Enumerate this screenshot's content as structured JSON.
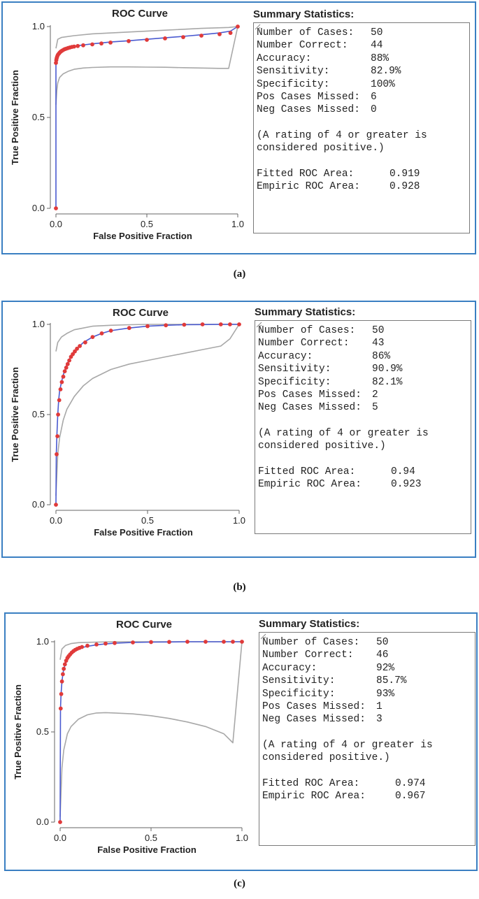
{
  "panels": [
    {
      "caption": "(a)",
      "chart_data": {
        "type": "line",
        "title": "ROC Curve",
        "xlabel": "False Positive Fraction",
        "ylabel": "True Positive Fraction",
        "xlim": [
          0,
          1
        ],
        "ylim": [
          0,
          1
        ],
        "xticks": [
          "0.0",
          "0.5",
          "1.0"
        ],
        "yticks": [
          "0.0",
          "0.5",
          "1.0"
        ],
        "grid": false,
        "series": [
          {
            "role": "fitted",
            "color": "#4a5ad0",
            "x": [
              0,
              0,
              0.002,
              0.004,
              0.007,
              0.01,
              0.014,
              0.019,
              0.025,
              0.032,
              0.04,
              0.05,
              0.062,
              0.075,
              0.09,
              0.12,
              0.16,
              0.2,
              0.25,
              0.3,
              0.4,
              0.5,
              0.6,
              0.7,
              0.8,
              0.9,
              0.96,
              1.0
            ],
            "y": [
              0,
              0.8,
              0.82,
              0.83,
              0.84,
              0.848,
              0.855,
              0.86,
              0.865,
              0.87,
              0.875,
              0.879,
              0.883,
              0.887,
              0.89,
              0.895,
              0.9,
              0.905,
              0.91,
              0.915,
              0.922,
              0.93,
              0.938,
              0.946,
              0.955,
              0.965,
              0.975,
              1.0
            ]
          },
          {
            "role": "upper-bound",
            "color": "#a8a8a8",
            "x": [
              0,
              0.01,
              0.03,
              0.1,
              0.2,
              0.4,
              0.6,
              0.8,
              0.95,
              1.0
            ],
            "y": [
              0.88,
              0.93,
              0.94,
              0.95,
              0.96,
              0.97,
              0.98,
              0.99,
              0.995,
              1.0
            ]
          },
          {
            "role": "lower-bound",
            "color": "#a8a8a8",
            "x": [
              0,
              0.005,
              0.01,
              0.02,
              0.04,
              0.07,
              0.1,
              0.15,
              0.2,
              0.3,
              0.4,
              0.5,
              0.6,
              0.7,
              0.8,
              0.9,
              0.95,
              1.0
            ],
            "y": [
              0.57,
              0.65,
              0.69,
              0.72,
              0.74,
              0.755,
              0.765,
              0.772,
              0.775,
              0.778,
              0.778,
              0.777,
              0.776,
              0.774,
              0.772,
              0.77,
              0.77,
              1.0
            ]
          }
        ],
        "points": {
          "color": "#e03a3a",
          "x": [
            0,
            0,
            0.002,
            0.004,
            0.006,
            0.009,
            0.012,
            0.016,
            0.02,
            0.025,
            0.03,
            0.036,
            0.043,
            0.05,
            0.058,
            0.067,
            0.077,
            0.088,
            0.1,
            0.12,
            0.15,
            0.2,
            0.25,
            0.3,
            0.4,
            0.5,
            0.6,
            0.7,
            0.8,
            0.9,
            0.96,
            1.0
          ],
          "y": [
            0,
            0.8,
            0.815,
            0.825,
            0.833,
            0.84,
            0.846,
            0.851,
            0.856,
            0.861,
            0.865,
            0.869,
            0.873,
            0.876,
            0.879,
            0.882,
            0.885,
            0.888,
            0.89,
            0.893,
            0.897,
            0.902,
            0.907,
            0.912,
            0.92,
            0.927,
            0.935,
            0.942,
            0.95,
            0.958,
            0.965,
            1.0
          ]
        }
      },
      "stats": {
        "title": "Summary Statistics:",
        "rows": [
          {
            "key": "Number of Cases:",
            "value": "50"
          },
          {
            "key": "Number Correct:",
            "value": "44"
          },
          {
            "key": "Accuracy:",
            "value": "88%"
          },
          {
            "key": "Sensitivity:",
            "value": "82.9%"
          },
          {
            "key": "Specificity:",
            "value": "100%"
          },
          {
            "key": "Pos Cases Missed:",
            "value": "6"
          },
          {
            "key": "Neg Cases Missed:",
            "value": "0"
          }
        ],
        "note": "(A rating of 4 or greater is considered positive.)",
        "area_rows": [
          {
            "key": "Fitted ROC Area:",
            "value": "0.919"
          },
          {
            "key": "Empiric ROC Area:",
            "value": "0.928"
          }
        ]
      }
    },
    {
      "caption": "(b)",
      "chart_data": {
        "type": "line",
        "title": "ROC Curve",
        "xlabel": "False Positive Fraction",
        "ylabel": "True Positive Fraction",
        "xlim": [
          0,
          1
        ],
        "ylim": [
          0,
          1
        ],
        "xticks": [
          "0.0",
          "0.5",
          "1.0"
        ],
        "yticks": [
          "0.0",
          "0.5",
          "1.0"
        ],
        "grid": false,
        "series": [
          {
            "role": "fitted",
            "color": "#4a5ad0",
            "x": [
              0,
              0.002,
              0.005,
              0.01,
              0.015,
              0.02,
              0.03,
              0.04,
              0.05,
              0.06,
              0.07,
              0.08,
              0.1,
              0.12,
              0.15,
              0.2,
              0.25,
              0.3,
              0.4,
              0.5,
              0.6,
              0.7,
              0.8,
              0.9,
              1.0
            ],
            "y": [
              0,
              0.28,
              0.38,
              0.5,
              0.58,
              0.63,
              0.68,
              0.72,
              0.75,
              0.78,
              0.8,
              0.82,
              0.85,
              0.87,
              0.9,
              0.93,
              0.95,
              0.965,
              0.98,
              0.99,
              0.995,
              0.998,
              0.999,
              1.0,
              1.0
            ]
          },
          {
            "role": "upper-bound",
            "color": "#a8a8a8",
            "x": [
              0,
              0.01,
              0.03,
              0.06,
              0.1,
              0.15,
              0.2,
              0.3,
              0.4,
              0.5,
              0.7,
              1.0
            ],
            "y": [
              0.85,
              0.9,
              0.93,
              0.95,
              0.97,
              0.98,
              0.99,
              0.995,
              0.998,
              1.0,
              1.0,
              1.0
            ]
          },
          {
            "role": "lower-bound",
            "color": "#a8a8a8",
            "x": [
              0,
              0.01,
              0.02,
              0.04,
              0.06,
              0.1,
              0.15,
              0.2,
              0.3,
              0.4,
              0.5,
              0.6,
              0.7,
              0.8,
              0.9,
              0.95,
              1.0
            ],
            "y": [
              0.05,
              0.28,
              0.37,
              0.47,
              0.53,
              0.6,
              0.66,
              0.7,
              0.75,
              0.78,
              0.8,
              0.82,
              0.84,
              0.86,
              0.88,
              0.92,
              1.0
            ]
          }
        ],
        "points": {
          "color": "#e03a3a",
          "x": [
            0,
            0.004,
            0.008,
            0.012,
            0.018,
            0.025,
            0.032,
            0.04,
            0.048,
            0.056,
            0.064,
            0.073,
            0.082,
            0.092,
            0.103,
            0.115,
            0.13,
            0.16,
            0.2,
            0.25,
            0.3,
            0.4,
            0.5,
            0.6,
            0.7,
            0.8,
            0.9,
            0.95,
            1.0
          ],
          "y": [
            0,
            0.28,
            0.38,
            0.5,
            0.58,
            0.64,
            0.68,
            0.71,
            0.74,
            0.76,
            0.78,
            0.8,
            0.82,
            0.835,
            0.85,
            0.865,
            0.88,
            0.9,
            0.93,
            0.95,
            0.965,
            0.98,
            0.99,
            0.995,
            0.998,
            1.0,
            1.0,
            1.0,
            1.0
          ]
        }
      },
      "stats": {
        "title": "Summary Statistics:",
        "rows": [
          {
            "key": "Number of Cases:",
            "value": "50"
          },
          {
            "key": "Number Correct:",
            "value": "43"
          },
          {
            "key": "Accuracy:",
            "value": "86%"
          },
          {
            "key": "Sensitivity:",
            "value": "90.9%"
          },
          {
            "key": "Specificity:",
            "value": "82.1%"
          },
          {
            "key": "Pos Cases Missed:",
            "value": "2"
          },
          {
            "key": "Neg Cases Missed:",
            "value": "5"
          }
        ],
        "note": "(A rating of 4 or greater is considered positive.)",
        "area_rows": [
          {
            "key": "Fitted ROC Area:",
            "value": "0.94"
          },
          {
            "key": "Empiric ROC Area:",
            "value": "0.923"
          }
        ]
      }
    },
    {
      "caption": "(c)",
      "chart_data": {
        "type": "line",
        "title": "ROC Curve",
        "xlabel": "False Positive Fraction",
        "ylabel": "True Positive Fraction",
        "xlim": [
          0,
          1
        ],
        "ylim": [
          0,
          1
        ],
        "xticks": [
          "0.0",
          "0.5",
          "1.0"
        ],
        "yticks": [
          "0.0",
          "0.5",
          "1.0"
        ],
        "grid": false,
        "series": [
          {
            "role": "fitted",
            "color": "#4a5ad0",
            "x": [
              0,
              0.002,
              0.005,
              0.01,
              0.015,
              0.02,
              0.03,
              0.04,
              0.05,
              0.06,
              0.08,
              0.1,
              0.12,
              0.15,
              0.2,
              0.25,
              0.3,
              0.4,
              0.5,
              0.6,
              0.7,
              0.8,
              0.9,
              1.0
            ],
            "y": [
              0,
              0.63,
              0.71,
              0.78,
              0.82,
              0.85,
              0.88,
              0.9,
              0.92,
              0.935,
              0.95,
              0.96,
              0.968,
              0.975,
              0.983,
              0.988,
              0.992,
              0.996,
              0.998,
              0.999,
              1.0,
              1.0,
              1.0,
              1.0
            ]
          },
          {
            "role": "upper-bound",
            "color": "#a8a8a8",
            "x": [
              0,
              0.01,
              0.03,
              0.06,
              0.1,
              0.2,
              0.3,
              0.5,
              1.0
            ],
            "y": [
              0.9,
              0.96,
              0.98,
              0.99,
              0.995,
              0.998,
              1.0,
              1.0,
              1.0
            ]
          },
          {
            "role": "lower-bound",
            "color": "#a8a8a8",
            "x": [
              0,
              0.01,
              0.02,
              0.04,
              0.06,
              0.1,
              0.15,
              0.2,
              0.25,
              0.3,
              0.4,
              0.5,
              0.6,
              0.7,
              0.8,
              0.9,
              0.95,
              1.0
            ],
            "y": [
              0.03,
              0.3,
              0.4,
              0.49,
              0.53,
              0.57,
              0.595,
              0.605,
              0.607,
              0.605,
              0.6,
              0.59,
              0.575,
              0.555,
              0.53,
              0.49,
              0.44,
              1.0
            ]
          }
        ],
        "points": {
          "color": "#e03a3a",
          "x": [
            0,
            0.003,
            0.006,
            0.01,
            0.015,
            0.02,
            0.026,
            0.033,
            0.04,
            0.047,
            0.055,
            0.064,
            0.073,
            0.083,
            0.094,
            0.106,
            0.12,
            0.15,
            0.2,
            0.25,
            0.3,
            0.4,
            0.5,
            0.6,
            0.7,
            0.8,
            0.9,
            0.95,
            1.0
          ],
          "y": [
            0,
            0.63,
            0.71,
            0.78,
            0.82,
            0.85,
            0.875,
            0.895,
            0.91,
            0.92,
            0.93,
            0.94,
            0.948,
            0.955,
            0.961,
            0.966,
            0.971,
            0.978,
            0.985,
            0.99,
            0.993,
            0.996,
            0.998,
            0.999,
            1.0,
            1.0,
            1.0,
            1.0,
            1.0
          ]
        }
      },
      "stats": {
        "title": "Summary Statistics:",
        "rows": [
          {
            "key": "Number of Cases:",
            "value": "50"
          },
          {
            "key": "Number Correct:",
            "value": "46"
          },
          {
            "key": "Accuracy:",
            "value": "92%"
          },
          {
            "key": "Sensitivity:",
            "value": "85.7%"
          },
          {
            "key": "Specificity:",
            "value": "93%"
          },
          {
            "key": "Pos Cases Missed:",
            "value": "1"
          },
          {
            "key": "Neg Cases Missed:",
            "value": "3"
          }
        ],
        "note": "(A rating of 4 or greater is considered positive.)",
        "area_rows": [
          {
            "key": "Fitted ROC Area:",
            "value": "0.974"
          },
          {
            "key": "Empiric ROC Area:",
            "value": "0.967"
          }
        ]
      }
    }
  ]
}
